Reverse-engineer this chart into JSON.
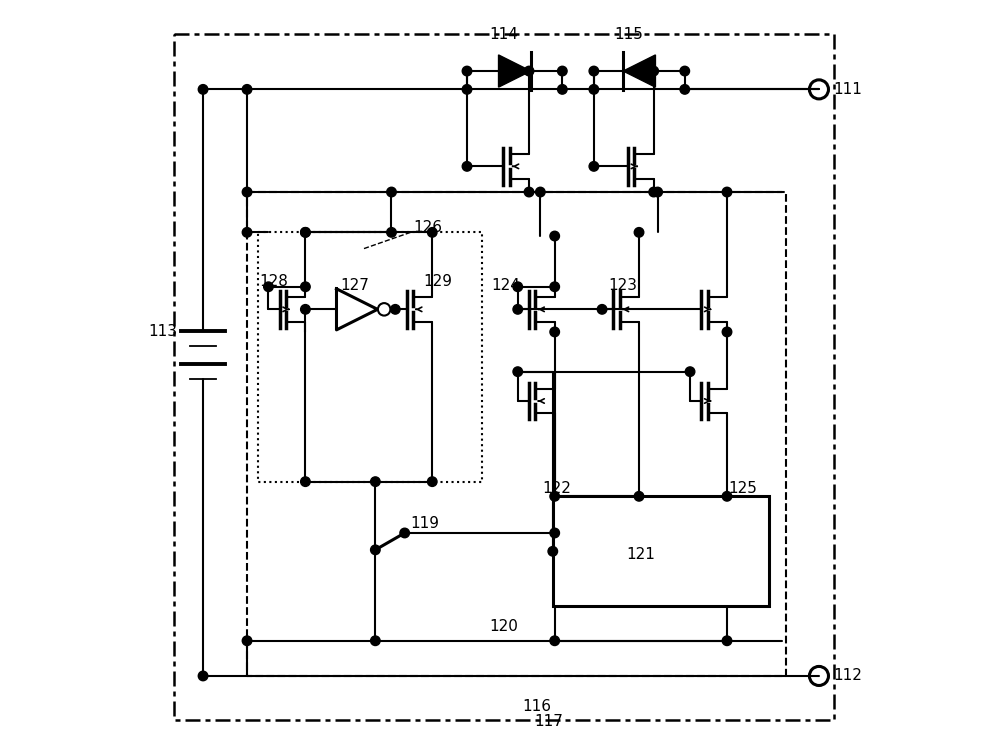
{
  "bg_color": "#ffffff",
  "fig_width": 10.0,
  "fig_height": 7.36
}
